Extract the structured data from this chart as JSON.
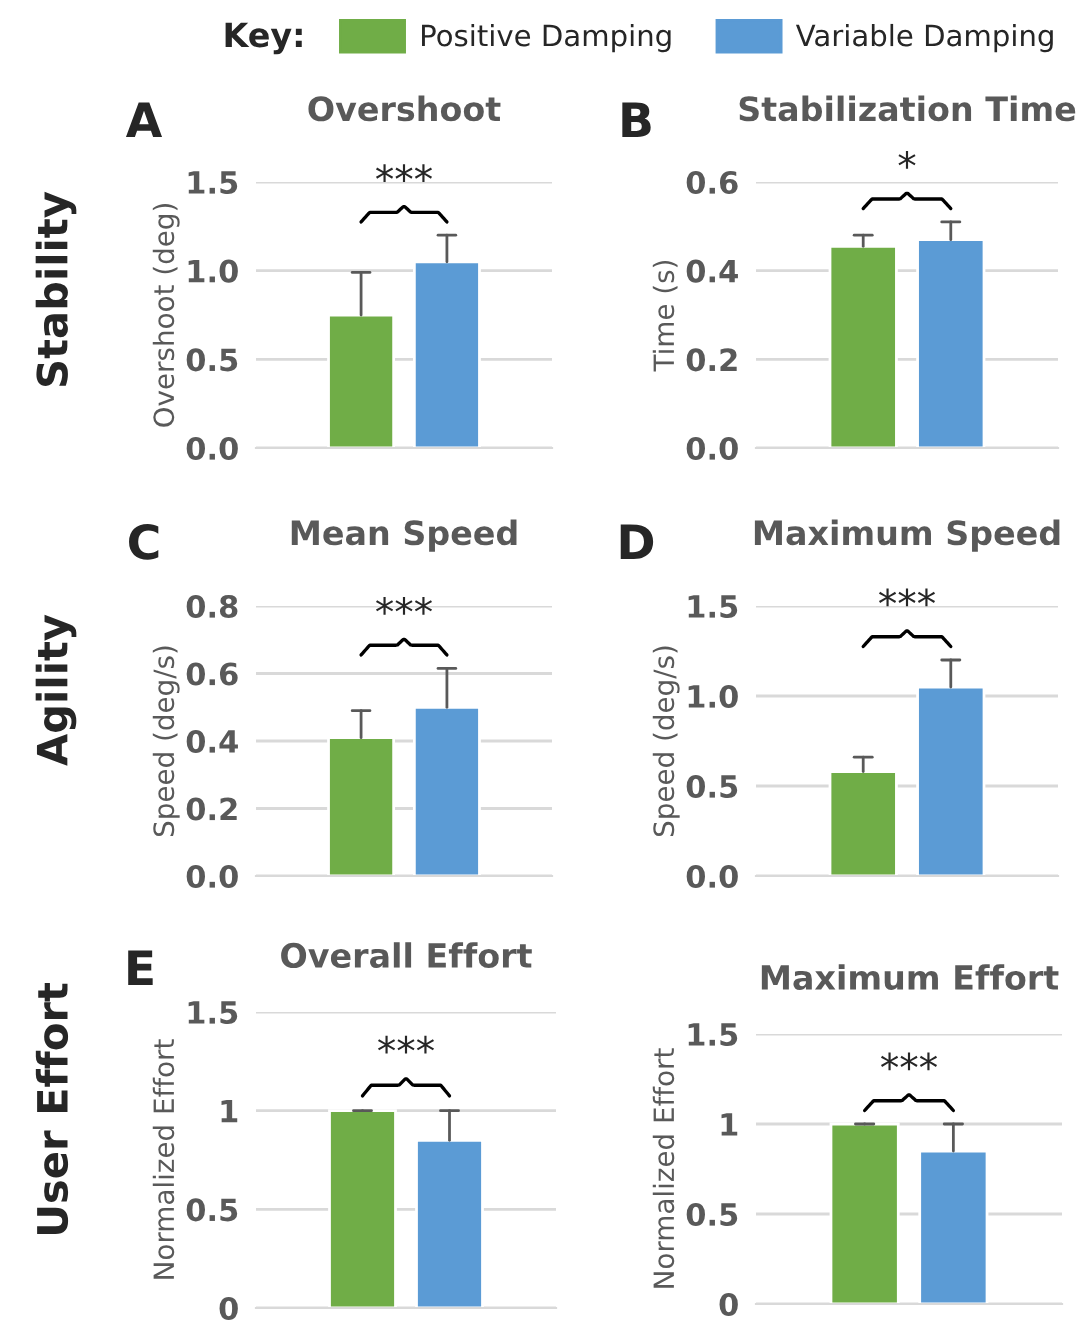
{
  "chart_data": [
    {
      "type": "bar",
      "title": "Overshoot",
      "ylabel": "Overshoot (deg)",
      "categories": [
        null
      ],
      "legend": "top",
      "legend_title": "Key:",
      "grid": "y",
      "tick_labels": "y",
      "series": [
        {
          "name": "Positive Damping",
          "color": "#70ad47",
          "values": [
            0.75
          ],
          "errors": [
            [
              0.75,
              0.99
            ]
          ]
        },
        {
          "name": "Variable Damping",
          "color": "#5b9bd5",
          "values": [
            1.05
          ],
          "errors": [
            [
              1.05,
              1.2
            ]
          ]
        }
      ],
      "ylim": [
        0,
        1.5
      ],
      "yticks": [
        {
          "value": 0,
          "label": "0.0"
        },
        {
          "value": 0.5,
          "label": "0.5"
        },
        {
          "value": 1.0,
          "label": "1.0"
        },
        {
          "value": 1.5,
          "label": "1.5"
        }
      ],
      "annotations": [
        "***",
        "A",
        "Stability"
      ]
    },
    {
      "type": "bar",
      "title": "Stabilization Time",
      "ylabel": "Time (s)",
      "categories": [
        null
      ],
      "grid": "y",
      "tick_labels": "y",
      "series": [
        {
          "name": "Positive Damping",
          "color": "#70ad47",
          "values": [
            0.455
          ],
          "errors": [
            [
              0.455,
              0.48
            ]
          ]
        },
        {
          "name": "Variable Damping",
          "color": "#5b9bd5",
          "values": [
            0.47
          ],
          "errors": [
            [
              0.47,
              0.51
            ]
          ]
        }
      ],
      "ylim": [
        0,
        0.6
      ],
      "yticks": [
        {
          "value": 0,
          "label": "0.0"
        },
        {
          "value": 0.2,
          "label": "0.2"
        },
        {
          "value": 0.4,
          "label": "0.4"
        },
        {
          "value": 0.6,
          "label": "0.6"
        }
      ],
      "annotations": [
        "*",
        "B"
      ]
    },
    {
      "type": "bar",
      "title": "Mean Speed",
      "ylabel": "Speed (deg/s)",
      "categories": [
        null
      ],
      "grid": "y",
      "tick_labels": "y",
      "series": [
        {
          "name": "Positive Damping",
          "color": "#70ad47",
          "values": [
            0.41
          ],
          "errors": [
            [
              0.41,
              0.49
            ]
          ]
        },
        {
          "name": "Variable Damping",
          "color": "#5b9bd5",
          "values": [
            0.5
          ],
          "errors": [
            [
              0.5,
              0.615
            ]
          ]
        }
      ],
      "ylim": [
        0,
        0.8
      ],
      "yticks": [
        {
          "value": 0,
          "label": "0.0"
        },
        {
          "value": 0.2,
          "label": "0.2"
        },
        {
          "value": 0.4,
          "label": "0.4"
        },
        {
          "value": 0.6,
          "label": "0.6"
        },
        {
          "value": 0.8,
          "label": "0.8"
        }
      ],
      "annotations": [
        "***",
        "C",
        "Agility"
      ]
    },
    {
      "type": "bar",
      "title": "Maximum Speed",
      "ylabel": "Speed (deg/s)",
      "categories": [
        null
      ],
      "grid": "y",
      "tick_labels": "y",
      "series": [
        {
          "name": "Positive Damping",
          "color": "#70ad47",
          "values": [
            0.58
          ],
          "errors": [
            [
              0.58,
              0.66
            ]
          ]
        },
        {
          "name": "Variable Damping",
          "color": "#5b9bd5",
          "values": [
            1.05
          ],
          "errors": [
            [
              1.05,
              1.2
            ]
          ]
        }
      ],
      "ylim": [
        0,
        1.5
      ],
      "yticks": [
        {
          "value": 0,
          "label": "0.0"
        },
        {
          "value": 0.5,
          "label": "0.5"
        },
        {
          "value": 1.0,
          "label": "1.0"
        },
        {
          "value": 1.5,
          "label": "1.5"
        }
      ],
      "annotations": [
        "***",
        "D"
      ]
    },
    {
      "type": "bar",
      "title": "Overall Effort",
      "ylabel": "Normalized Effort",
      "categories": [
        null
      ],
      "grid": "y",
      "tick_labels": "y",
      "series": [
        {
          "name": "Positive Damping",
          "color": "#70ad47",
          "values": [
            1.0
          ],
          "errors": [
            [
              1.0,
              1.0
            ]
          ]
        },
        {
          "name": "Variable Damping",
          "color": "#5b9bd5",
          "values": [
            0.85
          ],
          "errors": [
            [
              0.85,
              1.0
            ]
          ]
        }
      ],
      "ylim": [
        0,
        1.5
      ],
      "yticks": [
        0,
        0.5,
        1,
        1.5
      ],
      "annotations": [
        "***",
        "E",
        "User Effort"
      ]
    },
    {
      "type": "bar",
      "title": "Maximum Effort",
      "ylabel": "Normalized Effort",
      "categories": [
        null
      ],
      "grid": "y",
      "tick_labels": "y",
      "series": [
        {
          "name": "Positive Damping",
          "color": "#70ad47",
          "values": [
            1.0
          ],
          "errors": [
            [
              1.0,
              1.0
            ]
          ]
        },
        {
          "name": "Variable Damping",
          "color": "#5b9bd5",
          "values": [
            0.85
          ],
          "errors": [
            [
              0.85,
              1.0
            ]
          ]
        }
      ],
      "ylim": [
        0,
        1.5
      ],
      "yticks": [
        0,
        0.5,
        1,
        1.5
      ],
      "annotations": [
        "***"
      ]
    }
  ]
}
